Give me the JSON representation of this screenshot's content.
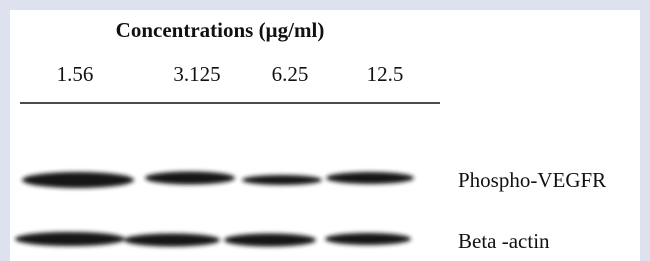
{
  "header": {
    "title": "Concentrations (µg/ml)"
  },
  "lanes": [
    "1.56",
    "3.125",
    "6.25",
    "12.5"
  ],
  "blots": [
    {
      "label": "Phospho-VEGFR"
    },
    {
      "label": "Beta -actin"
    }
  ]
}
